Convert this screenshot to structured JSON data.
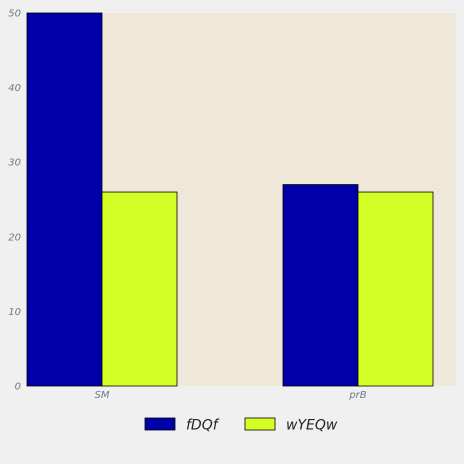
{
  "chart_data": {
    "type": "bar",
    "categories": [
      "SM",
      "prB"
    ],
    "series": [
      {
        "name": "fDQf",
        "values": [
          50,
          27
        ],
        "color": "#0000aa"
      },
      {
        "name": "wYEQw",
        "values": [
          26,
          26
        ],
        "color": "#d4ff26"
      }
    ],
    "title": "",
    "xlabel": "",
    "ylabel": "",
    "ylim": [
      0,
      50
    ],
    "yticks": [
      0,
      10,
      20,
      30,
      40,
      50
    ],
    "grid": false,
    "legend_position": "bottom-center",
    "plot_background": "#efe8d8",
    "page_background": "#f0f0f0"
  }
}
